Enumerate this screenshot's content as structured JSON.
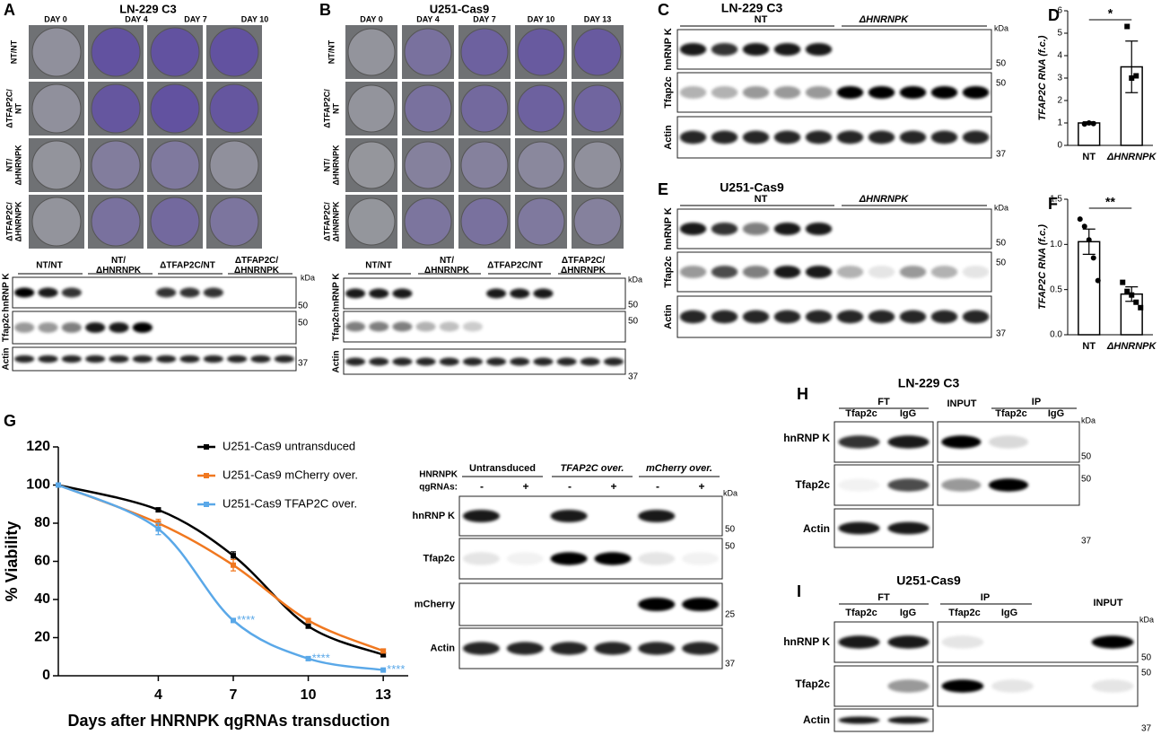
{
  "panels": {
    "a": {
      "letter": "A",
      "title": "LN-229 C3",
      "days": [
        "DAY 0",
        "DAY 4",
        "DAY 7",
        "DAY 10"
      ],
      "plate_rows": [
        [
          "NT/NT"
        ],
        [
          "ΔTFAP2C/",
          "NT"
        ],
        [
          "NT/",
          "ΔHNRNPK"
        ],
        [
          "ΔTFAP2C/",
          "ΔHNRNPK"
        ]
      ],
      "blot_groups": [
        [
          "NT/NT"
        ],
        [
          "NT/",
          "ΔHNRNPK"
        ],
        [
          "ΔTFAP2C/NT"
        ],
        [
          "ΔTFAP2C/",
          "ΔHNRNPK"
        ]
      ],
      "blot_rows": [
        "hnRNP K",
        "Tfap2c",
        "Actin"
      ],
      "kda": "kDa",
      "markers": [
        50,
        50,
        37
      ]
    },
    "b": {
      "letter": "B",
      "title": "U251-Cas9",
      "days": [
        "DAY 0",
        "DAY 4",
        "DAY 7",
        "DAY 10",
        "DAY 13"
      ],
      "plate_rows": [
        [
          "NT/NT"
        ],
        [
          "ΔTFAP2C/",
          "NT"
        ],
        [
          "NT/",
          "ΔHNRNPK"
        ],
        [
          "ΔTFAP2C/",
          "ΔHNRNPK"
        ]
      ],
      "blot_groups": [
        [
          "NT/NT"
        ],
        [
          "NT/",
          "ΔHNRNPK"
        ],
        [
          "ΔTFAP2C/NT"
        ],
        [
          "ΔTFAP2C/",
          "ΔHNRNPK"
        ]
      ],
      "blot_rows": [
        "hnRNP K",
        "Tfap2c",
        "Actin"
      ],
      "kda": "kDa",
      "markers": [
        50,
        50,
        37
      ]
    },
    "c": {
      "letter": "C",
      "title": "LN-229 C3",
      "groups": [
        "NT",
        "ΔHNRNPK"
      ],
      "blot_rows": [
        "hnRNP K",
        "Tfap2c",
        "Actin"
      ],
      "kda": "kDa",
      "markers": [
        50,
        50,
        37
      ]
    },
    "e": {
      "letter": "E",
      "title": "U251-Cas9",
      "groups": [
        "NT",
        "ΔHNRNPK"
      ],
      "blot_rows": [
        "hnRNP K",
        "Tfap2c",
        "Actin"
      ],
      "kda": "kDa",
      "markers": [
        50,
        50,
        37
      ]
    },
    "g_blot": {
      "qgrnas_label": [
        "HNRNPK",
        "qgRNAs:"
      ],
      "groups": [
        "Untransduced",
        "TFAP2C over.",
        "mCherry over."
      ],
      "signs": [
        "-",
        "+",
        "-",
        "+",
        "-",
        "+"
      ],
      "blot_rows": [
        "hnRNP K",
        "Tfap2c",
        "mCherry",
        "Actin"
      ],
      "kda": "kDa",
      "markers": [
        50,
        50,
        25,
        37
      ]
    },
    "h": {
      "letter": "H",
      "title": "LN-229 C3",
      "headers": [
        "FT",
        "INPUT",
        "IP"
      ],
      "lanes": [
        "Tfap2c",
        "IgG",
        "Tfap2c",
        "IgG"
      ],
      "blot_rows": [
        "hnRNP K",
        "Tfap2c",
        "Actin"
      ],
      "kda": "kDa",
      "markers": [
        50,
        50,
        37
      ]
    },
    "i": {
      "letter": "I",
      "title": "U251-Cas9",
      "headers": [
        "FT",
        "IP",
        "INPUT"
      ],
      "lanes": [
        "Tfap2c",
        "IgG",
        "Tfap2c",
        "IgG"
      ],
      "blot_rows": [
        "hnRNP K",
        "Tfap2c",
        "Actin"
      ],
      "kda": "kDa",
      "markers": [
        50,
        50,
        37
      ]
    }
  },
  "chart_data": [
    {
      "type": "bar",
      "letter": "D",
      "ylabel": "TFAP2C RNA (f.c.)",
      "categories": [
        "NT",
        "ΔHNRNPK"
      ],
      "values": [
        1.0,
        3.5
      ],
      "errors": [
        0.05,
        1.15
      ],
      "points": [
        [
          0.95,
          1.0,
          0.97
        ],
        [
          5.3,
          3.0,
          3.1
        ]
      ],
      "significance": "*",
      "ylim": [
        0,
        6
      ],
      "yticks": [
        0,
        1,
        2,
        3,
        4,
        5,
        6
      ]
    },
    {
      "type": "bar",
      "letter": "F",
      "ylabel": "TFAP2C RNA (f.c.)",
      "categories": [
        "NT",
        "ΔHNRNPK"
      ],
      "values": [
        1.03,
        0.45
      ],
      "errors": [
        0.14,
        0.08
      ],
      "points": [
        [
          1.28,
          1.2,
          1.05,
          0.85,
          0.6
        ],
        [
          0.58,
          0.48,
          0.44,
          0.36,
          0.3
        ]
      ],
      "significance": "**",
      "ylim": [
        0,
        1.5
      ],
      "yticks": [
        {
          "value": 0,
          "label": "0.0"
        },
        0.5,
        {
          "value": 1,
          "label": "1.0"
        },
        1.5
      ]
    },
    {
      "type": "line",
      "letter": "G",
      "xlabel": "Days after HNRNPK qgRNAs transduction",
      "ylabel": "% Viability",
      "x": [
        0,
        4,
        7,
        10,
        13
      ],
      "xlim": [
        0,
        14
      ],
      "xticks": [
        4,
        7,
        10,
        13
      ],
      "ylim": [
        0,
        120
      ],
      "yticks": [
        0,
        20,
        40,
        60,
        80,
        100,
        120
      ],
      "series": [
        {
          "name": "U251-Cas9 untransduced",
          "color": "#000000",
          "values": [
            100,
            87,
            63,
            26,
            11
          ],
          "errors": [
            0,
            1,
            2,
            1,
            1
          ]
        },
        {
          "name": "U251-Cas9 mCherry over.",
          "color": "#f07820",
          "values": [
            100,
            80,
            58,
            29,
            13
          ],
          "errors": [
            0,
            2,
            3,
            1,
            1
          ]
        },
        {
          "name": "U251-Cas9 TFAP2C over.",
          "color": "#5aa8e8",
          "values": [
            100,
            77,
            29,
            9,
            3
          ],
          "errors": [
            0,
            3,
            1,
            1,
            0
          ],
          "value_annotations": [
            null,
            null,
            "****",
            "****",
            "****"
          ]
        }
      ]
    }
  ]
}
